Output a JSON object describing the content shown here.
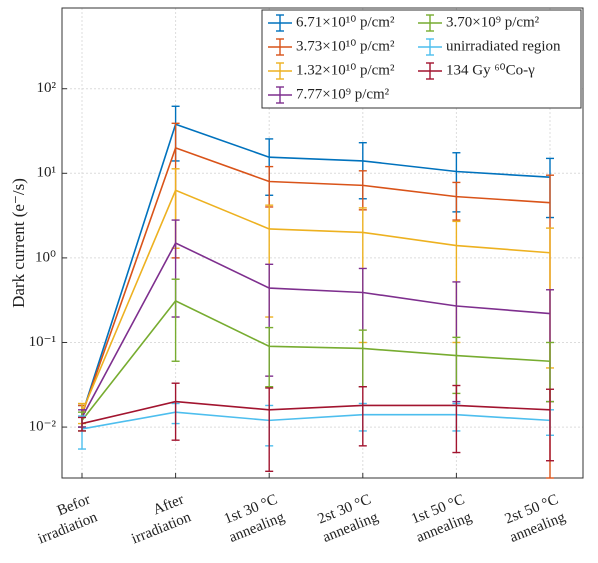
{
  "chart_data": {
    "type": "line",
    "y_label": "Dark current (e⁻/s)",
    "log_y": true,
    "grid": true,
    "legend": "upper right",
    "categories": [
      "Befor\nirradiation",
      "After\nirradiation",
      "1st 30 °C\nannealing",
      "2st 30 °C\nannealing",
      "1st 50 °C\nannealing",
      "2st 50 °C\nannealing"
    ],
    "ylim": [
      0.0025,
      900
    ],
    "yticks": [
      {
        "value": 0.01,
        "label": "10⁻²"
      },
      {
        "value": 0.1,
        "label": "10⁻¹"
      },
      {
        "value": 1,
        "label": "10⁰"
      },
      {
        "value": 10,
        "label": "10¹"
      },
      {
        "value": 100,
        "label": "10²"
      }
    ],
    "series": [
      {
        "name": "6.71×10¹⁰ p/cm²",
        "color": "#0072bd",
        "values": [
          0.014,
          38,
          15.5,
          14,
          10.5,
          9
        ],
        "errors": [
          0.004,
          24,
          10,
          9,
          7,
          6
        ]
      },
      {
        "name": "3.73×10¹⁰ p/cm²",
        "color": "#d95319",
        "values": [
          0.014,
          20,
          8,
          7.2,
          5.3,
          4.5
        ],
        "errors": [
          0.004,
          19,
          4,
          3.5,
          2.5,
          5
        ]
      },
      {
        "name": "1.32×10¹⁰ p/cm²",
        "color": "#edb120",
        "values": [
          0.015,
          6.3,
          2.2,
          2.0,
          1.4,
          1.15
        ],
        "errors": [
          0.004,
          5,
          2,
          1.9,
          1.3,
          1.1
        ]
      },
      {
        "name": "7.77×10⁹ p/cm²",
        "color": "#7e2f8e",
        "values": [
          0.013,
          1.5,
          0.44,
          0.39,
          0.27,
          0.22
        ],
        "errors": [
          0.003,
          1.3,
          0.4,
          0.36,
          0.25,
          0.2
        ]
      },
      {
        "name": "3.70×10⁹ p/cm²",
        "color": "#77ac30",
        "values": [
          0.012,
          0.31,
          0.09,
          0.085,
          0.07,
          0.06
        ],
        "errors": [
          0.003,
          0.25,
          0.06,
          0.055,
          0.045,
          0.04
        ]
      },
      {
        "name": "unirradiated region",
        "color": "#4dbeee",
        "values": [
          0.0095,
          0.015,
          0.012,
          0.014,
          0.014,
          0.012
        ],
        "errors": [
          0.004,
          0.004,
          0.006,
          0.005,
          0.005,
          0.004
        ]
      },
      {
        "name": "134 Gy ⁶⁰Co-γ",
        "color": "#a2142f",
        "values": [
          0.011,
          0.02,
          0.016,
          0.018,
          0.018,
          0.016
        ],
        "errors": [
          0.002,
          0.013,
          0.013,
          0.012,
          0.013,
          0.012
        ]
      }
    ]
  }
}
